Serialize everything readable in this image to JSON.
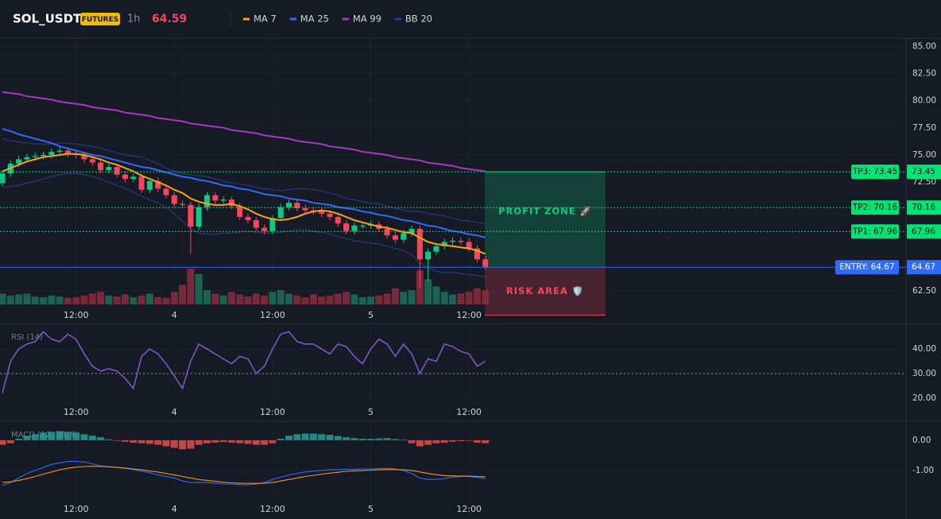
{
  "header": {
    "symbol": "SOL_USDT",
    "badge": "FUTURES",
    "interval": "1h",
    "price": 64.59
  },
  "chart_data": [
    {
      "type": "candlestick",
      "categories": [
        null,
        null,
        null,
        null,
        null,
        null,
        null,
        null,
        null,
        "12:00",
        null,
        null,
        null,
        null,
        null,
        null,
        null,
        null,
        null,
        null,
        null,
        "4",
        null,
        null,
        null,
        null,
        null,
        null,
        null,
        null,
        null,
        null,
        null,
        "12:00",
        null,
        null,
        null,
        null,
        null,
        null,
        null,
        null,
        null,
        null,
        null,
        "5",
        null,
        null,
        null,
        null,
        null,
        null,
        null,
        null,
        null,
        null,
        null,
        "12:00",
        null,
        null
      ],
      "open": [
        72.4,
        73.3,
        74.2,
        74.6,
        74.8,
        74.9,
        75.0,
        75.3,
        75.4,
        75.1,
        75.0,
        74.6,
        74.3,
        73.6,
        73.9,
        73.2,
        72.8,
        73.0,
        71.8,
        72.6,
        71.9,
        71.3,
        70.5,
        70.4,
        68.4,
        70.2,
        71.3,
        70.8,
        70.9,
        70.3,
        69.3,
        69.0,
        68.3,
        68.0,
        69.2,
        70.2,
        70.6,
        70.1,
        69.9,
        69.8,
        69.6,
        69.3,
        68.7,
        68.0,
        68.5,
        68.5,
        68.6,
        68.2,
        67.6,
        67.2,
        67.8,
        68.2,
        65.4,
        66.1,
        66.6,
        67.0,
        67.1,
        67.0,
        66.4,
        65.4
      ],
      "high": [
        73.6,
        74.5,
        74.9,
        75.1,
        75.2,
        75.3,
        75.6,
        75.7,
        75.7,
        75.4,
        75.3,
        74.9,
        74.6,
        74.2,
        74.2,
        73.5,
        73.3,
        73.3,
        72.9,
        72.9,
        72.2,
        71.6,
        70.8,
        70.7,
        70.5,
        71.6,
        71.6,
        71.2,
        71.2,
        70.6,
        69.6,
        69.3,
        68.6,
        69.5,
        70.5,
        70.9,
        70.9,
        70.4,
        70.2,
        70.1,
        69.9,
        69.6,
        69.0,
        68.8,
        68.8,
        68.9,
        68.9,
        68.5,
        67.9,
        68.1,
        68.5,
        68.5,
        66.4,
        66.9,
        67.3,
        67.4,
        67.4,
        67.3,
        66.7,
        65.7
      ],
      "low": [
        72.1,
        73.0,
        73.9,
        74.3,
        74.5,
        74.6,
        74.7,
        75.0,
        74.8,
        74.7,
        74.3,
        74.0,
        73.3,
        73.3,
        72.9,
        72.5,
        72.5,
        71.5,
        71.5,
        71.6,
        71.0,
        70.2,
        70.1,
        65.9,
        68.1,
        69.9,
        70.5,
        70.5,
        70.0,
        69.0,
        68.7,
        68.0,
        67.7,
        67.7,
        68.9,
        69.9,
        69.8,
        69.6,
        69.5,
        69.3,
        69.0,
        68.4,
        67.7,
        67.7,
        68.2,
        68.2,
        67.9,
        67.3,
        66.9,
        66.9,
        67.5,
        62.8,
        63.4,
        65.8,
        66.3,
        66.7,
        66.7,
        66.1,
        65.1,
        64.4
      ],
      "close": [
        73.3,
        74.2,
        74.6,
        74.8,
        74.9,
        75.0,
        75.3,
        75.4,
        75.1,
        75.0,
        74.6,
        74.3,
        73.6,
        73.9,
        73.2,
        72.8,
        73.0,
        71.8,
        72.6,
        71.9,
        71.3,
        70.5,
        70.4,
        68.4,
        70.2,
        71.3,
        70.8,
        70.9,
        70.3,
        69.3,
        69.0,
        68.3,
        68.0,
        69.2,
        70.2,
        70.6,
        70.1,
        69.9,
        69.8,
        69.6,
        69.3,
        68.7,
        68.0,
        68.5,
        68.5,
        68.6,
        68.2,
        67.6,
        67.2,
        67.8,
        68.2,
        65.4,
        66.1,
        66.6,
        67.0,
        67.1,
        67.0,
        66.4,
        65.4,
        64.7
      ],
      "up_color": "#0ecb81",
      "down_color": "#f6465d",
      "volume": [
        30,
        25,
        28,
        30,
        22,
        20,
        25,
        22,
        18,
        20,
        25,
        30,
        35,
        25,
        22,
        28,
        20,
        25,
        30,
        20,
        18,
        35,
        55,
        100,
        85,
        40,
        30,
        25,
        35,
        28,
        22,
        30,
        25,
        35,
        40,
        30,
        25,
        20,
        28,
        22,
        25,
        30,
        35,
        28,
        20,
        22,
        25,
        30,
        45,
        35,
        40,
        95,
        70,
        50,
        35,
        28,
        30,
        35,
        45,
        40
      ],
      "series": [
        {
          "name": "MA 7",
          "color": "#f7a21b",
          "values": [
            73.5,
            73.8,
            74.1,
            74.4,
            74.6,
            74.8,
            74.9,
            75.0,
            75.1,
            75.1,
            75.0,
            74.8,
            74.6,
            74.3,
            74.1,
            73.8,
            73.5,
            73.1,
            72.8,
            72.5,
            72.2,
            71.8,
            71.5,
            71.0,
            70.7,
            70.5,
            70.4,
            70.4,
            70.5,
            70.3,
            70.0,
            69.6,
            69.3,
            69.1,
            69.0,
            69.1,
            69.3,
            69.6,
            69.8,
            69.9,
            69.8,
            69.6,
            69.3,
            69.0,
            68.8,
            68.6,
            68.4,
            68.3,
            68.1,
            67.9,
            67.8,
            67.4,
            67.0,
            66.8,
            66.7,
            66.6,
            66.5,
            66.4,
            66.2,
            65.9
          ]
        },
        {
          "name": "MA 25",
          "color": "#2f6bff",
          "values": [
            77.4,
            77.2,
            76.9,
            76.7,
            76.5,
            76.3,
            76.1,
            75.8,
            75.6,
            75.4,
            75.2,
            75.0,
            74.9,
            74.7,
            74.5,
            74.3,
            74.1,
            73.9,
            73.8,
            73.6,
            73.4,
            73.2,
            73.0,
            72.9,
            72.7,
            72.6,
            72.4,
            72.2,
            72.1,
            71.9,
            71.8,
            71.6,
            71.4,
            71.3,
            71.2,
            71.0,
            70.9,
            70.8,
            70.6,
            70.5,
            70.4,
            70.2,
            70.1,
            70.0,
            69.8,
            69.7,
            69.5,
            69.4,
            69.2,
            69.0,
            68.9,
            68.7,
            68.5,
            68.4,
            68.2,
            68.0,
            67.9,
            67.7,
            67.6,
            67.4
          ]
        },
        {
          "name": "MA 99",
          "color": "#a53ac0",
          "values": [
            80.8,
            80.7,
            80.6,
            80.4,
            80.3,
            80.2,
            80.1,
            79.9,
            79.8,
            79.7,
            79.6,
            79.4,
            79.3,
            79.2,
            79.1,
            78.9,
            78.8,
            78.7,
            78.6,
            78.4,
            78.3,
            78.2,
            78.1,
            77.9,
            77.8,
            77.7,
            77.6,
            77.5,
            77.3,
            77.2,
            77.1,
            77.0,
            76.8,
            76.7,
            76.6,
            76.5,
            76.3,
            76.2,
            76.1,
            76.0,
            75.8,
            75.7,
            75.6,
            75.5,
            75.3,
            75.2,
            75.1,
            75.0,
            74.8,
            74.7,
            74.6,
            74.5,
            74.3,
            74.2,
            74.1,
            74.0,
            73.8,
            73.7,
            73.6,
            73.5
          ]
        },
        {
          "name": "BB 20",
          "color": "#2a3f8f",
          "upper": [
            76.5,
            76.3,
            76.2,
            76.1,
            76.0,
            76.0,
            76.0,
            76.1,
            76.1,
            76.0,
            75.9,
            75.8,
            75.6,
            75.4,
            75.2,
            75.0,
            74.9,
            74.8,
            74.5,
            74.2,
            73.8,
            73.5,
            73.3,
            73.2,
            73.1,
            73.0,
            72.8,
            72.6,
            72.4,
            72.3,
            72.2,
            72.0,
            71.9,
            71.8,
            71.7,
            71.8,
            71.9,
            71.9,
            71.8,
            71.7,
            71.5,
            71.3,
            71.0,
            70.9,
            70.7,
            70.6,
            70.5,
            70.3,
            70.1,
            69.9,
            69.8,
            69.8,
            69.6,
            69.5,
            69.4,
            69.2,
            69.0,
            68.9,
            68.8,
            68.7
          ],
          "lower": [
            72.0,
            72.1,
            72.2,
            72.4,
            72.6,
            72.8,
            73.0,
            73.2,
            73.3,
            73.3,
            73.2,
            73.0,
            72.8,
            72.5,
            72.2,
            71.9,
            71.6,
            71.2,
            70.9,
            70.6,
            70.2,
            69.6,
            68.9,
            68.2,
            67.8,
            67.7,
            67.7,
            67.8,
            67.8,
            67.9,
            68.0,
            67.9,
            67.8,
            67.8,
            67.9,
            68.0,
            68.1,
            68.1,
            68.0,
            67.9,
            67.7,
            67.5,
            67.3,
            67.1,
            67.0,
            66.9,
            66.8,
            66.6,
            66.4,
            66.2,
            65.8,
            65.1,
            64.6,
            64.3,
            64.2,
            64.2,
            64.1,
            64.0,
            63.9,
            63.8
          ]
        }
      ],
      "ylim": [
        61.25,
        85.75
      ],
      "yticks": [
        {
          "value": 85,
          "label": "85.00"
        },
        {
          "value": 82.5,
          "label": "82.50"
        },
        {
          "value": 80,
          "label": "80.00"
        },
        {
          "value": 77.5,
          "label": "77.50"
        },
        {
          "value": 75,
          "label": "75.00"
        },
        {
          "value": 72.5,
          "label": "72.50"
        },
        {
          "value": 62.5,
          "label": "62.50"
        }
      ],
      "levels": [
        {
          "label": "TP3: 73.45",
          "value": 73.45,
          "color": "#00e676"
        },
        {
          "label": "TP2: 70.16",
          "value": 70.16,
          "color": "#00e676"
        },
        {
          "label": "TP1: 67.96",
          "value": 67.96,
          "color": "#00e676"
        },
        {
          "label": "ENTRY: 64.67",
          "value": 64.67,
          "color": "#2f6bff"
        }
      ],
      "zones": [
        {
          "label": "PROFIT ZONE 🚀",
          "from": 64.67,
          "to": 73.45,
          "color": "#0ecb81"
        },
        {
          "label": "RISK AREA 🛡️",
          "from": 64.67,
          "to": 60.25,
          "color": "#f6465d"
        }
      ]
    },
    {
      "type": "line",
      "title": "RSI (14)",
      "color": "#7e57c2",
      "values": [
        22,
        35,
        40,
        42,
        43,
        47,
        44,
        43,
        46,
        44,
        38,
        33,
        31,
        32,
        31,
        28,
        24,
        37,
        40,
        38,
        34,
        29,
        24,
        35,
        42,
        40,
        38,
        36,
        34,
        37,
        36,
        30,
        33,
        40,
        46,
        47,
        43,
        42,
        42,
        40,
        38,
        42,
        41,
        37,
        34,
        40,
        44,
        42,
        37,
        42,
        38,
        30,
        36,
        35,
        42,
        41,
        39,
        38,
        33,
        35
      ],
      "ylim": [
        18.7,
        49.4
      ],
      "yticks": [
        {
          "value": 40,
          "label": "40.00"
        },
        {
          "value": 30,
          "label": "30.00"
        },
        {
          "value": 20,
          "label": "20.00"
        }
      ],
      "reference": 30
    },
    {
      "type": "macd",
      "title": "MACD (12, 26, 9)",
      "up_color": "#26a69a",
      "down_color": "#ef5350",
      "histogram": [
        -0.15,
        -0.1,
        0.05,
        0.15,
        0.2,
        0.25,
        0.28,
        0.3,
        0.28,
        0.25,
        0.2,
        0.15,
        0.1,
        0.03,
        -0.02,
        -0.05,
        -0.08,
        -0.1,
        -0.12,
        -0.15,
        -0.2,
        -0.25,
        -0.3,
        -0.28,
        -0.15,
        -0.1,
        -0.08,
        -0.06,
        -0.08,
        -0.1,
        -0.12,
        -0.15,
        -0.15,
        -0.1,
        0.05,
        0.15,
        0.2,
        0.22,
        0.22,
        0.2,
        0.18,
        0.14,
        0.1,
        0.07,
        0.05,
        0.05,
        0.06,
        0.07,
        0.04,
        0.02,
        -0.1,
        -0.2,
        -0.15,
        -0.1,
        -0.08,
        -0.05,
        -0.03,
        -0.02,
        -0.08,
        -0.1
      ],
      "series": [
        {
          "color": "#2f6bff",
          "values": [
            -1.5,
            -1.4,
            -1.25,
            -1.1,
            -1.0,
            -0.9,
            -0.8,
            -0.75,
            -0.7,
            -0.7,
            -0.72,
            -0.78,
            -0.85,
            -0.88,
            -0.9,
            -0.93,
            -0.97,
            -1.02,
            -1.08,
            -1.15,
            -1.2,
            -1.25,
            -1.35,
            -1.4,
            -1.4,
            -1.4,
            -1.42,
            -1.45,
            -1.45,
            -1.47,
            -1.48,
            -1.45,
            -1.4,
            -1.3,
            -1.22,
            -1.15,
            -1.1,
            -1.05,
            -1.02,
            -1.0,
            -0.98,
            -0.97,
            -0.96,
            -0.96,
            -0.95,
            -0.95,
            -0.94,
            -0.93,
            -0.95,
            -1.0,
            -1.1,
            -1.25,
            -1.3,
            -1.3,
            -1.27,
            -1.22,
            -1.2,
            -1.2,
            -1.23,
            -1.27
          ]
        },
        {
          "color": "#f7931a",
          "values": [
            -1.4,
            -1.38,
            -1.33,
            -1.27,
            -1.2,
            -1.12,
            -1.05,
            -0.98,
            -0.93,
            -0.89,
            -0.87,
            -0.86,
            -0.87,
            -0.88,
            -0.9,
            -0.92,
            -0.95,
            -0.98,
            -1.02,
            -1.05,
            -1.1,
            -1.15,
            -1.2,
            -1.25,
            -1.3,
            -1.33,
            -1.36,
            -1.39,
            -1.41,
            -1.42,
            -1.43,
            -1.43,
            -1.42,
            -1.4,
            -1.35,
            -1.3,
            -1.25,
            -1.2,
            -1.16,
            -1.12,
            -1.09,
            -1.06,
            -1.03,
            -1.01,
            -1.0,
            -0.99,
            -0.98,
            -0.97,
            -0.97,
            -0.98,
            -1.0,
            -1.05,
            -1.1,
            -1.14,
            -1.17,
            -1.18,
            -1.19,
            -1.19,
            -1.2,
            -1.21
          ]
        }
      ],
      "ylim": [
        -1.95,
        0.55
      ],
      "yticks": [
        {
          "value": 0,
          "label": "0.00"
        },
        {
          "value": -1,
          "label": "-1.00"
        }
      ]
    }
  ]
}
